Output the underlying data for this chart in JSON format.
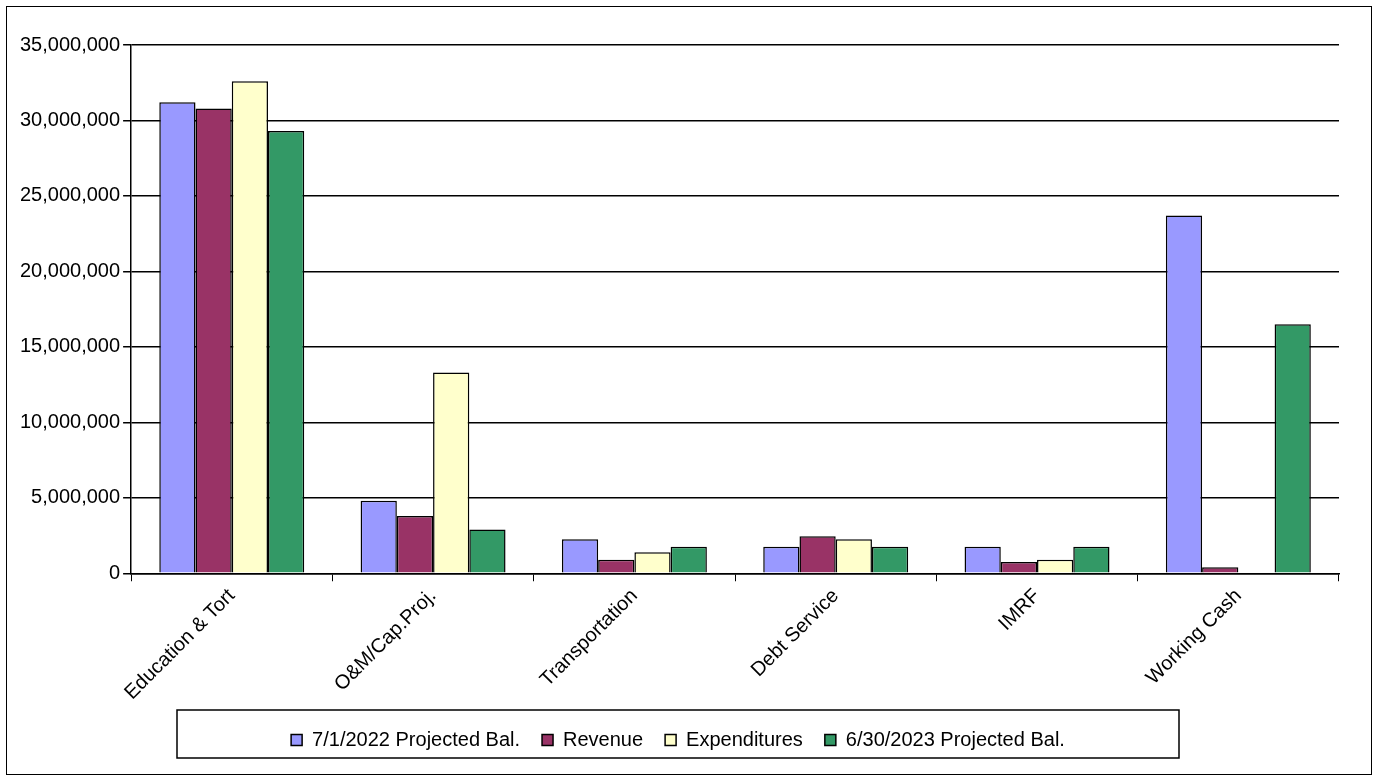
{
  "chart_data": {
    "type": "bar",
    "categories": [
      "Education & Tort",
      "O&M/Cap.Proj.",
      "Transportation",
      "Debt Service",
      "IMRF",
      "Working Cash"
    ],
    "series": [
      {
        "name": "7/1/2022 Projected Bal.",
        "color": "#9999ff",
        "values": [
          31200000,
          4800000,
          2250000,
          1750000,
          1750000,
          23700000
        ]
      },
      {
        "name": "Revenue",
        "color": "#993366",
        "values": [
          30800000,
          3800000,
          900000,
          2450000,
          750000,
          400000
        ]
      },
      {
        "name": "Expenditures",
        "color": "#ffffcc",
        "values": [
          32600000,
          13300000,
          1400000,
          2250000,
          900000,
          0
        ]
      },
      {
        "name": "6/30/2023 Projected Bal.",
        "color": "#339966",
        "values": [
          29300000,
          2900000,
          1750000,
          1750000,
          1750000,
          16500000
        ]
      }
    ],
    "ylim": [
      0,
      35000000
    ],
    "yticks": [
      0,
      {
        "value": 5000000,
        "label": "5,000,000"
      },
      {
        "value": 10000000,
        "label": "10,000,000"
      },
      {
        "value": 15000000,
        "label": "15,000,000"
      },
      {
        "value": 20000000,
        "label": "20,000,000"
      },
      {
        "value": 25000000,
        "label": "25,000,000"
      },
      {
        "value": 30000000,
        "label": "30,000,000"
      },
      {
        "value": 35000000,
        "label": "35,000,000"
      }
    ],
    "grid": "y",
    "legend": "bottom"
  }
}
